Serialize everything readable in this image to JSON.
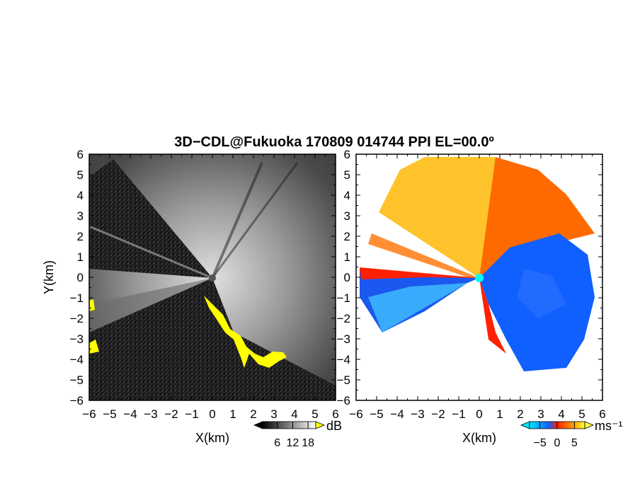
{
  "chart_data": {
    "type": "heatmap",
    "title": "3D−CDL@Fukuoka 170809 014744 PPI EL=00.0º",
    "panels": [
      {
        "name": "left",
        "field": "reflectivity",
        "xlabel": "X(km)",
        "ylabel": "Y(km)",
        "xlim": [
          -6,
          6
        ],
        "ylim": [
          -6,
          6
        ],
        "xticks": [
          "−6",
          "−5",
          "−4",
          "−3",
          "−2",
          "−1",
          "0",
          "1",
          "2",
          "3",
          "4",
          "5",
          "6"
        ],
        "yticks": [
          "−6",
          "−5",
          "−4",
          "−3",
          "−2",
          "−1",
          "0",
          "1",
          "2",
          "3",
          "4",
          "5",
          "6"
        ],
        "colorbar": {
          "unit": "dB",
          "ticks": [
            "6",
            "12",
            "18"
          ],
          "range": [
            0,
            21
          ],
          "colors": [
            "#000000",
            "#ffffff"
          ],
          "over_color": "#ffff00"
        }
      },
      {
        "name": "right",
        "field": "doppler velocity",
        "xlabel": "X(km)",
        "ylabel": "",
        "xlim": [
          -6,
          6
        ],
        "ylim": [
          -6,
          6
        ],
        "xticks": [
          "−6",
          "−5",
          "−4",
          "−3",
          "−2",
          "−1",
          "0",
          "1",
          "2",
          "3",
          "4",
          "5",
          "6"
        ],
        "yticks": [
          "−6",
          "−5",
          "−4",
          "−3",
          "−2",
          "−1",
          "0",
          "1",
          "2",
          "3",
          "4",
          "5",
          "6"
        ],
        "colorbar": {
          "unit": "ms⁻¹",
          "ticks": [
            "−5",
            "0",
            "5"
          ],
          "range": [
            -8,
            8
          ],
          "colors": [
            "#00e6ff",
            "#1060ff",
            "#ff2000",
            "#ffa000",
            "#ffff40"
          ]
        }
      }
    ]
  }
}
